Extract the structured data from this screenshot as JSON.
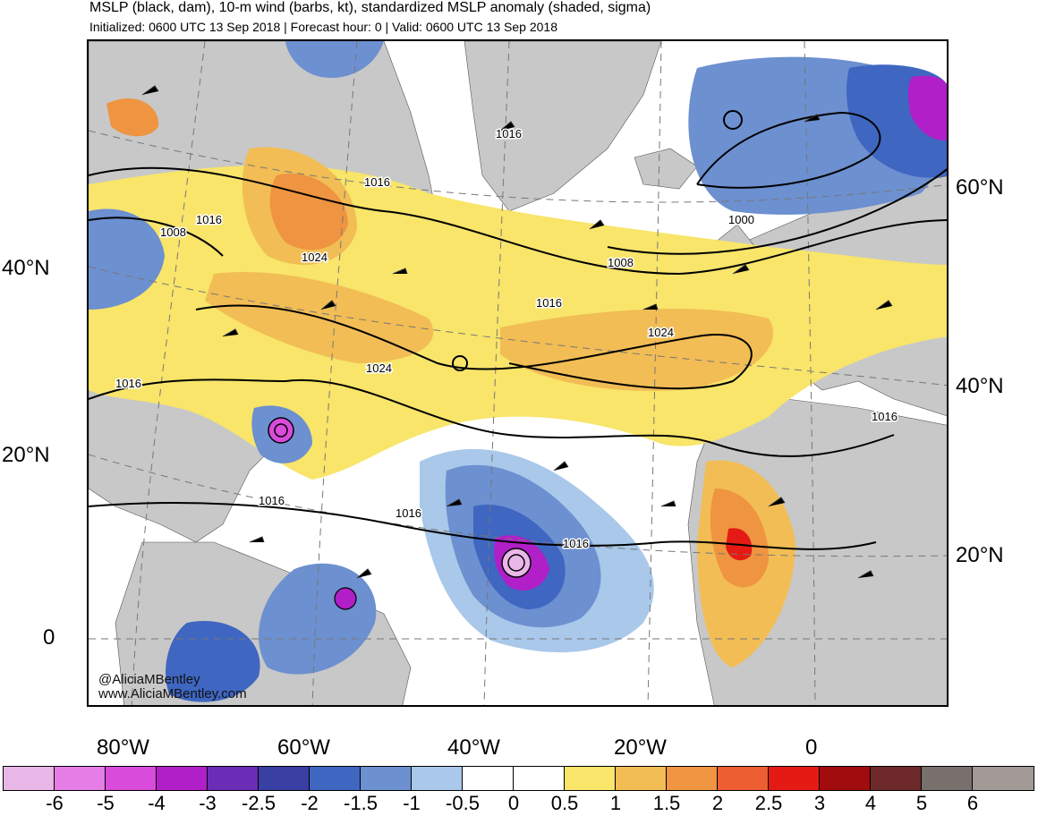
{
  "header": {
    "title": "MSLP (black, dam), 10-m wind (barbs, kt), standardized MSLP anomaly (shaded, sigma)",
    "subtitle": "Initialized: 0600 UTC 13 Sep 2018 | Forecast hour: 0 | Valid: 0600 UTC 13 Sep 2018"
  },
  "axes": {
    "left_lat_labels": [
      "40°N",
      "20°N",
      "0"
    ],
    "right_lat_labels": [
      "60°N",
      "40°N",
      "20°N"
    ],
    "lon_labels": [
      "80°W",
      "60°W",
      "40°W",
      "20°W",
      "0"
    ]
  },
  "isobar_labels": [
    "1016",
    "1016",
    "1008",
    "1016",
    "1024",
    "1008",
    "1000",
    "1016",
    "1024",
    "1024",
    "1016",
    "1016",
    "1016",
    "1016",
    "1016"
  ],
  "credit": {
    "handle": "@AliciaMBentley",
    "site": "www.AliciaMBentley.com"
  },
  "colorbar": {
    "labels": [
      "-6",
      "-5",
      "-4",
      "-3",
      "-2.5",
      "-2",
      "-1.5",
      "-1",
      "-0.5",
      "0",
      "0.5",
      "1",
      "1.5",
      "2",
      "2.5",
      "3",
      "4",
      "5",
      "6"
    ],
    "colors": [
      "#e8b7e8",
      "#e57de6",
      "#d94bdb",
      "#b01fc7",
      "#6a2db5",
      "#3a3fa3",
      "#3f66c1",
      "#6c90d0",
      "#a9c8ea",
      "#ffffff",
      "#ffffff",
      "#f8e56a",
      "#f2bd55",
      "#ef9440",
      "#ed5e32",
      "#e61a14",
      "#a10c0f",
      "#6e2a2a",
      "#77706d",
      "#a29a97"
    ]
  },
  "colors": {
    "land": "#c8c8c8",
    "high_anomaly": "#f2bd55",
    "low_anomaly": "#3f66c1",
    "isobar": "#000000"
  }
}
